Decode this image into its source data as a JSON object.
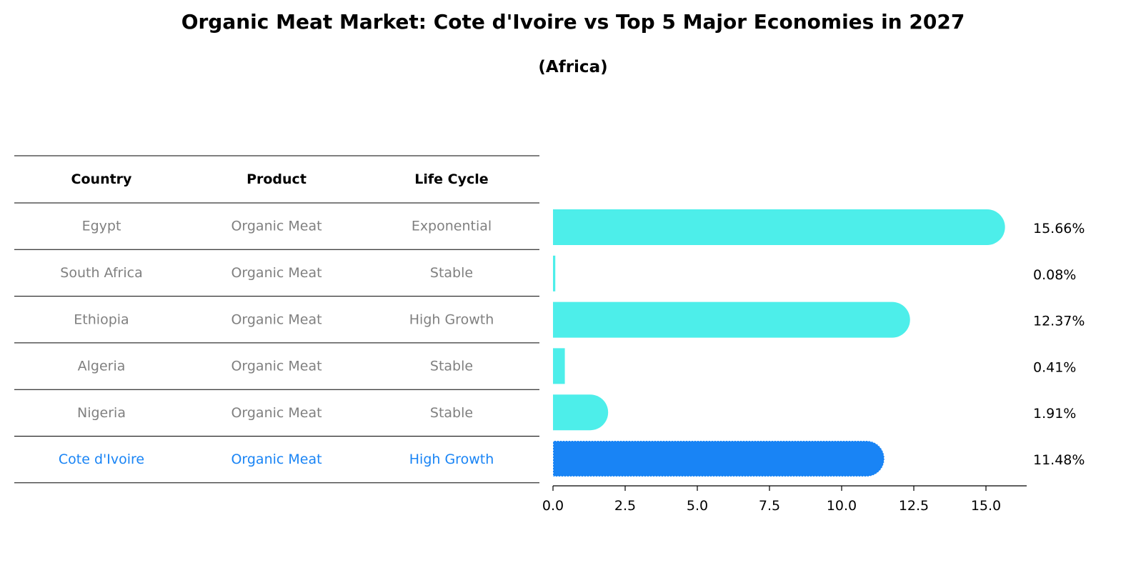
{
  "title": "Organic Meat Market: Cote d'Ivoire vs Top 5 Major Economies in 2027",
  "subtitle": "(Africa)",
  "table": {
    "headers": [
      "Country",
      "Product",
      "Life Cycle"
    ],
    "rows": [
      [
        "Egypt",
        "Organic Meat",
        "Exponential"
      ],
      [
        "South Africa",
        "Organic Meat",
        "Stable"
      ],
      [
        "Ethiopia",
        "Organic Meat",
        "High Growth"
      ],
      [
        "Algeria",
        "Organic Meat",
        "Stable"
      ],
      [
        "Nigeria",
        "Organic Meat",
        "Stable"
      ],
      [
        "Cote d'Ivoire",
        "Organic Meat",
        "High Growth"
      ]
    ],
    "highlight_row": 5
  },
  "colors": {
    "bar": "#4DEEEA",
    "highlight": "#1984F5",
    "text_muted": "#808080",
    "text_dark": "#000000"
  },
  "chart_data": {
    "type": "bar",
    "orientation": "horizontal",
    "categories": [
      "Egypt",
      "South Africa",
      "Ethiopia",
      "Algeria",
      "Nigeria",
      "Cote d'Ivoire"
    ],
    "values": [
      15.66,
      0.08,
      12.37,
      0.41,
      1.91,
      11.48
    ],
    "value_labels": [
      "15.66%",
      "0.08%",
      "12.37%",
      "0.41%",
      "1.91%",
      "11.48%"
    ],
    "highlight_category": "Cote d'Ivoire",
    "xlim": [
      0,
      16.4
    ],
    "xticks": [
      0.0,
      2.5,
      5.0,
      7.5,
      10.0,
      12.5,
      15.0
    ],
    "xtick_labels": [
      "0.0",
      "2.5",
      "5.0",
      "7.5",
      "10.0",
      "12.5",
      "15.0"
    ],
    "xlabel": "",
    "ylabel": ""
  }
}
